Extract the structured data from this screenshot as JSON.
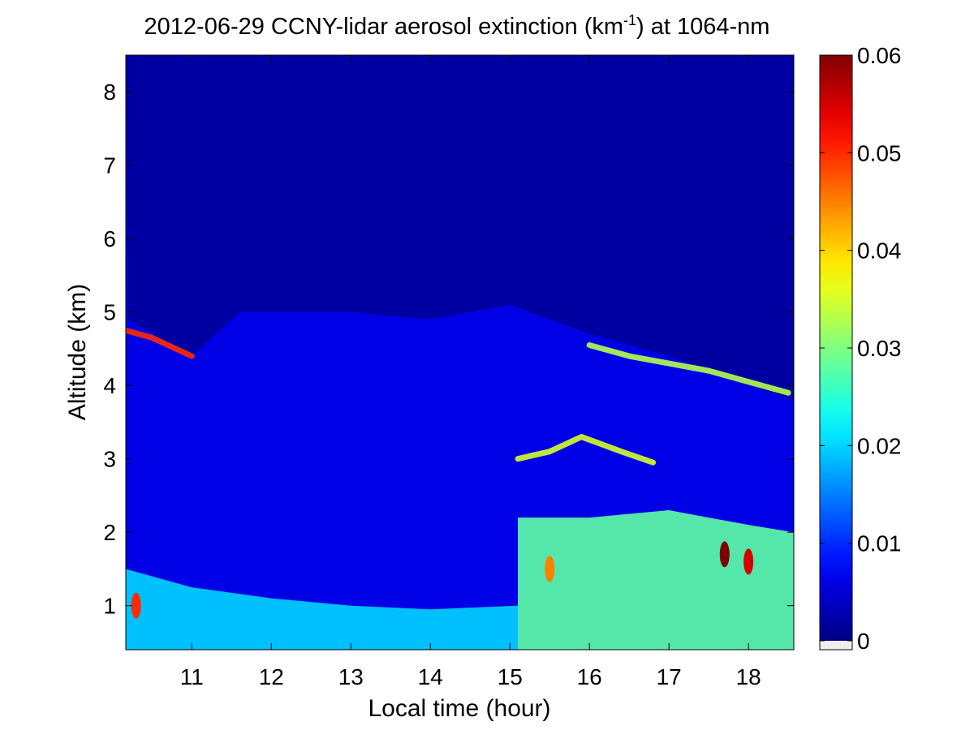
{
  "chart_data": {
    "type": "heatmap",
    "title": "2012-06-29 CCNY-lidar aerosol extinction (km",
    "title_superscript": "-1",
    "title_suffix": ") at 1064-nm",
    "xlabel": "Local time (hour)",
    "ylabel": "Altitude (km)",
    "xlim": [
      10.17,
      18.57
    ],
    "ylim": [
      0.4,
      8.5
    ],
    "x_ticks": [
      11,
      12,
      13,
      14,
      15,
      16,
      17,
      18
    ],
    "y_ticks": [
      1,
      2,
      3,
      4,
      5,
      6,
      7,
      8
    ],
    "colorbar": {
      "colormap": "jet",
      "range": [
        0,
        0.06
      ],
      "ticks": [
        0,
        0.01,
        0.02,
        0.03,
        0.04,
        0.05,
        0.06
      ]
    },
    "grid": false,
    "features": {
      "background_extinction": 0.006,
      "clear_free_troposphere_extinction": 0.002,
      "upper_layer_top": [
        [
          10.2,
          4.9
        ],
        [
          11.0,
          4.4
        ],
        [
          11.6,
          5.0
        ],
        [
          13.0,
          5.0
        ],
        [
          14.0,
          4.9
        ],
        [
          15.0,
          5.1
        ],
        [
          16.0,
          4.7
        ],
        [
          17.0,
          4.4
        ],
        [
          17.5,
          4.2
        ],
        [
          18.57,
          3.8
        ]
      ],
      "enhanced_aerosol_lines": [
        {
          "x": [
            10.17,
            10.5,
            11.0
          ],
          "y": [
            4.75,
            4.65,
            4.4
          ],
          "extinction": 0.05
        },
        {
          "x": [
            16.0,
            16.5,
            17.0,
            17.5,
            18.0,
            18.5
          ],
          "y": [
            4.55,
            4.4,
            4.3,
            4.2,
            4.05,
            3.9
          ],
          "extinction": 0.033
        },
        {
          "x": [
            15.1,
            15.5,
            15.9,
            16.4,
            16.8
          ],
          "y": [
            3.0,
            3.1,
            3.3,
            3.1,
            2.95
          ],
          "extinction": 0.035
        }
      ],
      "boundary_layer": [
        {
          "x": [
            10.17,
            11.0,
            12.0,
            13.0,
            14.0,
            15.1
          ],
          "top": [
            1.5,
            1.25,
            1.1,
            1.0,
            0.95,
            1.0
          ],
          "extinction": 0.02
        },
        {
          "x": [
            15.1,
            16.0,
            17.0,
            18.0,
            18.57
          ],
          "top": [
            2.2,
            2.2,
            2.3,
            2.1,
            2.0
          ],
          "extinction": 0.028
        }
      ],
      "hotspots": [
        {
          "x": 10.3,
          "y": 1.0,
          "extinction": 0.05
        },
        {
          "x": 17.7,
          "y": 1.7,
          "extinction": 0.06
        },
        {
          "x": 18.0,
          "y": 1.6,
          "extinction": 0.055
        },
        {
          "x": 15.5,
          "y": 1.5,
          "extinction": 0.045
        }
      ]
    }
  }
}
